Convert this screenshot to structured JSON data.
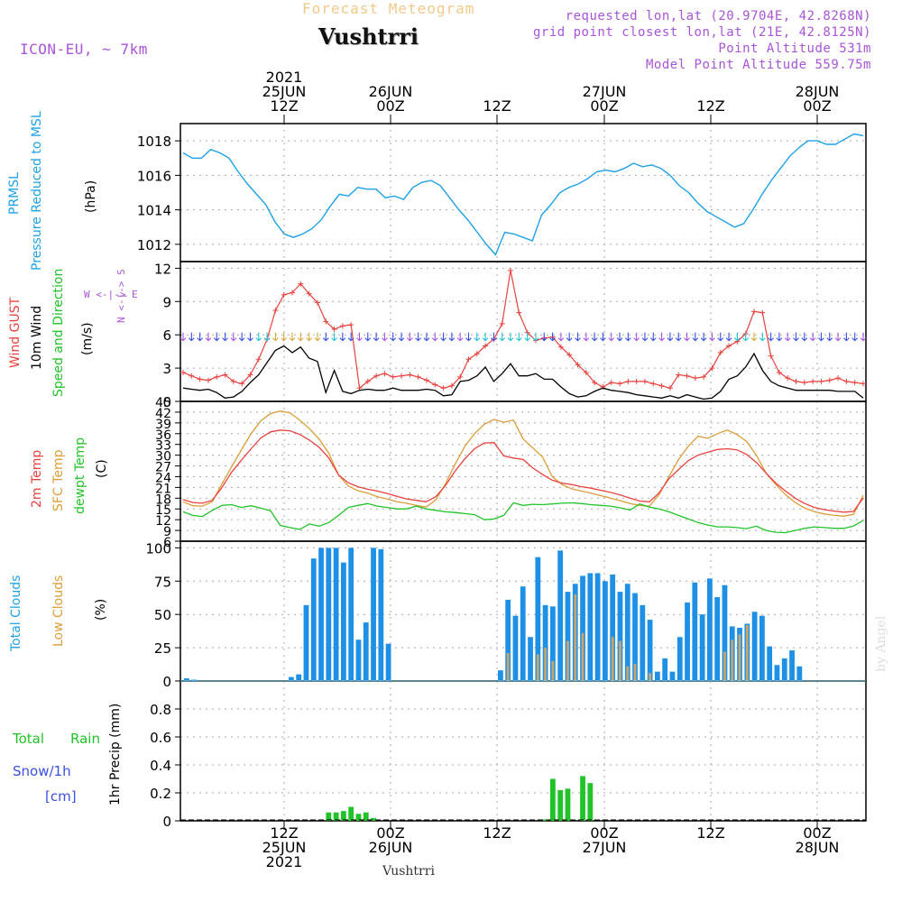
{
  "header": {
    "subtitle": "Forecast Meteogram",
    "station": "Vushtrri",
    "model": "ICON-EU, ~ 7km",
    "requested": "requested lon,lat (20.9704E, 42.8268N)",
    "gridpoint": "grid point closest lon,lat (21E, 42.8125N)",
    "point_alt": "Point Altitude 531m",
    "model_alt": "Model Point Altitude 559.75m",
    "footer_station": "Vushtrri",
    "credit": "by Angel"
  },
  "time_axis": {
    "top": [
      {
        "year": "2021",
        "day": "25JUN",
        "hour": "12Z"
      },
      {
        "year": "",
        "day": "26JUN",
        "hour": "00Z"
      },
      {
        "year": "",
        "day": "",
        "hour": "12Z"
      },
      {
        "year": "",
        "day": "27JUN",
        "hour": "00Z"
      },
      {
        "year": "",
        "day": "",
        "hour": "12Z"
      },
      {
        "year": "",
        "day": "28JUN",
        "hour": "00Z"
      }
    ],
    "bottom": [
      {
        "hour": "12Z",
        "day": "25JUN",
        "year": "2021"
      },
      {
        "hour": "00Z",
        "day": "26JUN",
        "year": ""
      },
      {
        "hour": "12Z",
        "day": "",
        "year": ""
      },
      {
        "hour": "00Z",
        "day": "27JUN",
        "year": ""
      },
      {
        "hour": "12Z",
        "day": "",
        "year": ""
      },
      {
        "hour": "00Z",
        "day": "28JUN",
        "year": ""
      }
    ]
  },
  "labels": {
    "p1": {
      "a": "PRMSL",
      "b": "Pressure Reduced to MSL",
      "unit": "(hPa)"
    },
    "p2": {
      "a": "Wind GUST",
      "b": "10m Wind",
      "c": "Speed and Direction",
      "unit": "(m/s)",
      "compass_ns": "N <-|-> S",
      "compass_we": "W <-|-> E"
    },
    "p3": {
      "a": "2m Temp",
      "b": "SFC Temp",
      "c": "dewpt Temp",
      "unit": "(C)"
    },
    "p4": {
      "a": "Total Clouds",
      "b": "Low Clouds",
      "unit": "(%)"
    },
    "p5": {
      "a": "Total",
      "b": "Rain",
      "c": "Snow/1h",
      "d": "[cm]",
      "unit": "1hr Precip (mm)"
    }
  },
  "colors": {
    "pressure": "#1fa1e8",
    "gust": "#e8423f",
    "wind": "#000000",
    "temp2m": "#e8423f",
    "sfc": "#dc9d3a",
    "dewpt": "#22c32a",
    "total_clouds": "#1e90e6",
    "low_clouds": "#c8a66b",
    "rain": "#22c32a",
    "purple": "#a855d8"
  },
  "chart_data": [
    {
      "type": "line",
      "title": "PRMSL Pressure Reduced to MSL",
      "ylabel": "hPa",
      "ylim": [
        1011,
        1019
      ],
      "yticks": [
        1012,
        1014,
        1016,
        1018
      ],
      "x_hours_from": "2021-06-24T18Z",
      "series": [
        {
          "name": "PRMSL",
          "values": [
            1017.3,
            1017.0,
            1017.0,
            1017.5,
            1017.3,
            1017.0,
            1016.2,
            1015.5,
            1014.9,
            1014.3,
            1013.3,
            1012.6,
            1012.4,
            1012.6,
            1012.9,
            1013.4,
            1014.2,
            1014.9,
            1014.8,
            1015.3,
            1015.2,
            1015.2,
            1014.7,
            1014.8,
            1014.6,
            1015.3,
            1015.6,
            1015.7,
            1015.4,
            1014.7,
            1014.0,
            1013.4,
            1012.7,
            1012.0,
            1011.4,
            1012.7,
            1012.6,
            1012.4,
            1012.2,
            1013.7,
            1014.3,
            1015.0,
            1015.3,
            1015.5,
            1015.8,
            1016.2,
            1016.3,
            1016.2,
            1016.4,
            1016.7,
            1016.5,
            1016.6,
            1016.4,
            1016.0,
            1015.4,
            1015.0,
            1014.4,
            1013.9,
            1013.6,
            1013.3,
            1013.0,
            1013.2,
            1014.0,
            1014.9,
            1015.7,
            1016.4,
            1017.1,
            1017.6,
            1018.0,
            1018.0,
            1017.8,
            1017.8,
            1018.1,
            1018.4,
            1018.3
          ]
        }
      ]
    },
    {
      "type": "line",
      "title": "Wind GUST / 10m Wind",
      "ylabel": "m/s",
      "ylim": [
        0,
        12.6
      ],
      "yticks": [
        0,
        3,
        6,
        9,
        12
      ],
      "series": [
        {
          "name": "Wind GUST",
          "values": [
            2.6,
            2.3,
            2.0,
            1.9,
            2.2,
            2.4,
            1.8,
            1.6,
            2.4,
            3.8,
            5.6,
            8.2,
            9.6,
            9.8,
            10.6,
            9.7,
            8.9,
            7.2,
            6.5,
            6.8,
            6.9,
            1.2,
            1.8,
            2.3,
            2.5,
            2.2,
            2.3,
            2.4,
            2.2,
            1.9,
            1.5,
            1.2,
            1.4,
            2.2,
            3.8,
            4.3,
            5.0,
            5.6,
            7.0,
            11.8,
            8.0,
            6.2,
            5.5,
            5.7,
            5.8,
            4.9,
            4.2,
            3.3,
            2.6,
            1.7,
            1.3,
            1.7,
            1.6,
            1.8,
            1.8,
            1.8,
            1.6,
            1.4,
            1.2,
            2.4,
            2.3,
            2.1,
            2.2,
            3.0,
            4.4,
            5.0,
            5.4,
            6.1,
            8.1,
            8.0,
            4.1,
            2.6,
            2.1,
            1.8,
            1.7,
            1.8,
            1.8,
            1.9,
            2.1,
            1.8,
            1.7,
            1.6
          ]
        },
        {
          "name": "10m Wind",
          "values": [
            1.2,
            1.1,
            1.0,
            1.1,
            0.8,
            0.3,
            0.4,
            0.9,
            1.7,
            2.4,
            3.5,
            4.6,
            5.0,
            4.4,
            4.9,
            3.9,
            3.6,
            0.8,
            2.8,
            0.9,
            0.7,
            1.0,
            1.1,
            1.0,
            1.0,
            1.2,
            1.0,
            1.0,
            1.0,
            1.1,
            1.0,
            0.5,
            0.6,
            1.8,
            1.9,
            2.3,
            3.1,
            1.8,
            2.5,
            3.4,
            2.3,
            2.3,
            2.5,
            2.0,
            2.0,
            1.3,
            0.7,
            0.4,
            0.5,
            0.9,
            1.2,
            1.0,
            0.9,
            0.8,
            0.6,
            0.5,
            0.4,
            0.3,
            0.5,
            0.3,
            0.6,
            0.4,
            0.2,
            0.3,
            0.9,
            2.0,
            2.3,
            3.1,
            4.3,
            2.8,
            1.8,
            1.4,
            1.2,
            1.0,
            1.0,
            1.0,
            1.0,
            1.0,
            0.9,
            0.9,
            0.9,
            0.3
          ]
        }
      ]
    },
    {
      "type": "line",
      "title": "2m Temp / SFC Temp / dewpt Temp",
      "ylabel": "C",
      "ylim": [
        6,
        45
      ],
      "yticks": [
        6,
        9,
        12,
        15,
        18,
        21,
        24,
        27,
        30,
        33,
        36,
        39,
        42,
        45
      ],
      "series": [
        {
          "name": "2m Temp",
          "values": [
            17.6,
            16.8,
            16.6,
            17.4,
            21.0,
            25.3,
            28.6,
            31.8,
            34.8,
            36.5,
            37.0,
            36.8,
            35.8,
            34.2,
            32.2,
            29.2,
            24.5,
            22.3,
            21.2,
            20.5,
            20.0,
            19.3,
            18.5,
            17.8,
            17.4,
            17.0,
            18.4,
            21.5,
            25.6,
            29.0,
            31.8,
            33.4,
            33.5,
            29.8,
            29.2,
            28.8,
            26.4,
            24.6,
            23.0,
            22.2,
            21.8,
            21.2,
            20.8,
            20.2,
            19.6,
            18.9,
            18.0,
            17.2,
            17.0,
            19.5,
            23.4,
            26.0,
            28.5,
            30.0,
            30.8,
            31.6,
            31.8,
            31.5,
            30.2,
            28.0,
            25.0,
            22.2,
            20.0,
            18.0,
            16.5,
            15.4,
            14.8,
            14.4,
            14.1,
            14.3,
            18.0
          ]
        },
        {
          "name": "SFC Temp",
          "values": [
            17.0,
            15.9,
            15.8,
            17.0,
            22.0,
            26.8,
            31.5,
            36.0,
            39.6,
            41.6,
            42.3,
            41.8,
            39.8,
            37.4,
            34.5,
            30.5,
            24.5,
            21.4,
            20.1,
            19.4,
            18.4,
            17.8,
            17.0,
            16.6,
            16.0,
            15.5,
            17.5,
            22.0,
            27.5,
            32.5,
            36.0,
            38.6,
            40.0,
            39.2,
            39.8,
            34.5,
            32.0,
            29.5,
            24.0,
            21.8,
            20.6,
            20.0,
            19.4,
            18.7,
            18.0,
            17.3,
            16.5,
            16.0,
            15.8,
            19.0,
            24.0,
            28.8,
            32.5,
            35.3,
            34.7,
            36.0,
            37.0,
            35.8,
            33.8,
            30.0,
            25.0,
            21.8,
            19.0,
            16.8,
            15.2,
            14.2,
            13.6,
            13.2,
            13.0,
            13.5,
            18.8
          ]
        },
        {
          "name": "dewpt Temp",
          "values": [
            14.2,
            13.2,
            12.9,
            14.6,
            16.0,
            16.2,
            15.4,
            15.9,
            15.2,
            14.5,
            10.4,
            9.8,
            9.3,
            10.8,
            10.2,
            11.2,
            13.2,
            15.4,
            16.0,
            16.5,
            15.8,
            15.4,
            15.0,
            15.0,
            15.8,
            15.0,
            14.6,
            14.2,
            14.0,
            13.7,
            13.4,
            12.0,
            12.2,
            13.2,
            16.7,
            16.0,
            16.3,
            16.2,
            16.4,
            16.6,
            16.7,
            16.5,
            16.2,
            16.0,
            15.8,
            15.3,
            14.7,
            16.4,
            15.5,
            15.0,
            14.2,
            13.2,
            12.2,
            11.2,
            10.5,
            10.0,
            10.0,
            9.8,
            9.5,
            10.2,
            9.0,
            8.5,
            8.4,
            9.0,
            9.6,
            10.0,
            9.8,
            9.6,
            9.6,
            10.2,
            11.8
          ]
        }
      ]
    },
    {
      "type": "bar",
      "title": "Total Clouds / Low Clouds",
      "ylabel": "%",
      "ylim": [
        0,
        105
      ],
      "yticks": [
        0,
        25,
        50,
        75,
        100
      ],
      "series": [
        {
          "name": "Total Clouds",
          "values": [
            2,
            1,
            0,
            0,
            0,
            0,
            0,
            0,
            0,
            0,
            0,
            0,
            0,
            0,
            3,
            5,
            57,
            92,
            100,
            100,
            100,
            89,
            100,
            31,
            44,
            100,
            99,
            28,
            0,
            0,
            0,
            0,
            0,
            0,
            0,
            0,
            0,
            0,
            0,
            0,
            0,
            0,
            8,
            61,
            49,
            71,
            33,
            93,
            57,
            56,
            98,
            67,
            73,
            79,
            81,
            81,
            75,
            80,
            67,
            73,
            66,
            57,
            46,
            7,
            17,
            7,
            33,
            59,
            74,
            50,
            77,
            63,
            72,
            41,
            40,
            43,
            52,
            49,
            26,
            12,
            17,
            23,
            11,
            0,
            0,
            0,
            0,
            0,
            0,
            0,
            0
          ]
        },
        {
          "name": "Low Clouds",
          "values": [
            0,
            0,
            0,
            0,
            0,
            0,
            0,
            0,
            0,
            0,
            0,
            0,
            0,
            0,
            0,
            0,
            0,
            0,
            0,
            0,
            0,
            0,
            0,
            0,
            0,
            0,
            0,
            0,
            0,
            0,
            0,
            0,
            0,
            0,
            0,
            0,
            0,
            0,
            0,
            0,
            0,
            0,
            0,
            21,
            0,
            0,
            0,
            20,
            25,
            15,
            0,
            30,
            65,
            36,
            0,
            0,
            0,
            33,
            30,
            11,
            13,
            0,
            6,
            0,
            0,
            0,
            0,
            0,
            0,
            0,
            0,
            0,
            22,
            31,
            35,
            42,
            0,
            0,
            0,
            0,
            0,
            0,
            0,
            0,
            0,
            0,
            0,
            0,
            0,
            0,
            0
          ]
        }
      ]
    },
    {
      "type": "bar",
      "title": "1hr Precip",
      "ylabel": "1hr Precip (mm)",
      "ylim": [
        0,
        1.0
      ],
      "yticks": [
        0,
        0.2,
        0.4,
        0.6,
        0.8
      ],
      "series": [
        {
          "name": "Total Rain",
          "values": [
            0,
            0,
            0,
            0,
            0,
            0,
            0,
            0,
            0,
            0,
            0,
            0,
            0,
            0,
            0,
            0,
            0,
            0,
            0,
            0.06,
            0.06,
            0.07,
            0.1,
            0.05,
            0.06,
            0.02,
            0,
            0,
            0,
            0,
            0,
            0,
            0,
            0,
            0,
            0,
            0,
            0,
            0,
            0,
            0,
            0,
            0,
            0,
            0,
            0,
            0,
            0,
            0.01,
            0.3,
            0.22,
            0.23,
            0,
            0.32,
            0.27,
            0,
            0,
            0,
            0,
            0,
            0,
            0,
            0,
            0,
            0,
            0,
            0,
            0,
            0,
            0,
            0,
            0,
            0,
            0,
            0,
            0,
            0,
            0,
            0,
            0,
            0,
            0,
            0,
            0,
            0,
            0,
            0,
            0,
            0,
            0,
            0
          ]
        }
      ]
    }
  ]
}
